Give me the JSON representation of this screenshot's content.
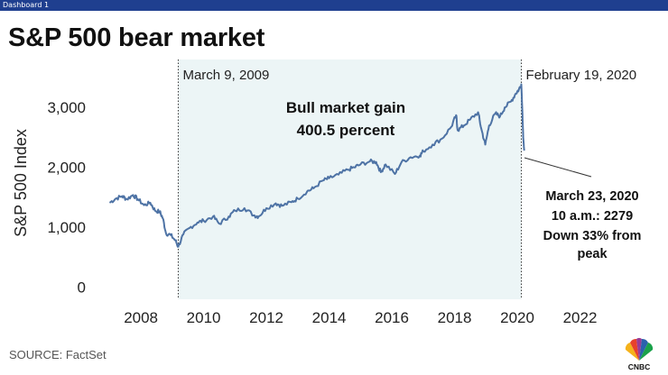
{
  "dashboard_label": "Dashboard 1",
  "title": "S&P 500 bear market",
  "source": "SOURCE: FactSet",
  "logo_text": "CNBC",
  "colors": {
    "line": "#4e73a5",
    "shade": "#ecf5f6",
    "topbar": "#1f3f8f"
  },
  "chart_data": {
    "type": "line",
    "title": "S&P 500 bear market",
    "ylabel": "S&P 500 Index",
    "xlabel": "",
    "xlim": [
      2006.5,
      2024.0
    ],
    "ylim": [
      -200,
      3800
    ],
    "y_ticks": [
      0,
      1000,
      2000,
      3000
    ],
    "y_tick_labels": [
      "0",
      "1,000",
      "2,000",
      "3,000"
    ],
    "x_ticks": [
      2008,
      2010,
      2012,
      2014,
      2016,
      2018,
      2020,
      2022
    ],
    "x_tick_labels": [
      "2008",
      "2010",
      "2012",
      "2014",
      "2016",
      "2018",
      "2020",
      "2022"
    ],
    "series": [
      {
        "name": "S&P 500",
        "x": [
          2007.0,
          2007.2,
          2007.4,
          2007.55,
          2007.75,
          2007.9,
          2008.1,
          2008.3,
          2008.45,
          2008.6,
          2008.7,
          2008.8,
          2008.95,
          2009.1,
          2009.19,
          2009.35,
          2009.55,
          2009.8,
          2010.0,
          2010.3,
          2010.5,
          2010.8,
          2011.0,
          2011.3,
          2011.6,
          2011.75,
          2012.0,
          2012.3,
          2012.5,
          2012.8,
          2013.0,
          2013.3,
          2013.5,
          2013.8,
          2014.0,
          2014.3,
          2014.6,
          2014.8,
          2015.0,
          2015.3,
          2015.5,
          2015.65,
          2015.8,
          2016.1,
          2016.3,
          2016.6,
          2016.9,
          2017.0,
          2017.3,
          2017.6,
          2017.9,
          2018.05,
          2018.1,
          2018.3,
          2018.5,
          2018.75,
          2018.85,
          2018.98,
          2019.1,
          2019.3,
          2019.45,
          2019.6,
          2019.8,
          2019.95,
          2020.05,
          2020.13,
          2020.16,
          2020.19,
          2020.22
        ],
        "values": [
          1410,
          1480,
          1520,
          1470,
          1540,
          1470,
          1370,
          1410,
          1280,
          1260,
          1150,
          900,
          870,
          780,
          677,
          880,
          990,
          1080,
          1110,
          1180,
          1060,
          1180,
          1280,
          1320,
          1200,
          1180,
          1320,
          1400,
          1360,
          1420,
          1480,
          1600,
          1650,
          1780,
          1820,
          1880,
          1960,
          2000,
          2050,
          2100,
          2090,
          1920,
          2050,
          1890,
          2080,
          2170,
          2200,
          2270,
          2380,
          2480,
          2680,
          2870,
          2620,
          2700,
          2800,
          2920,
          2650,
          2380,
          2700,
          2900,
          2850,
          3000,
          3100,
          3230,
          3300,
          3386,
          2960,
          2500,
          2279
        ]
      }
    ],
    "shaded_region": {
      "start": 2009.19,
      "end": 2020.13
    },
    "markers": [
      {
        "x": 2009.19,
        "label": "March 9, 2009"
      },
      {
        "x": 2020.13,
        "label": "February 19, 2020"
      }
    ],
    "annotations": {
      "bull": [
        "Bull market gain",
        "400.5 percent"
      ],
      "trough": [
        "March 23, 2020",
        "10 a.m.: 2279",
        "Down 33% from",
        "peak"
      ]
    }
  }
}
